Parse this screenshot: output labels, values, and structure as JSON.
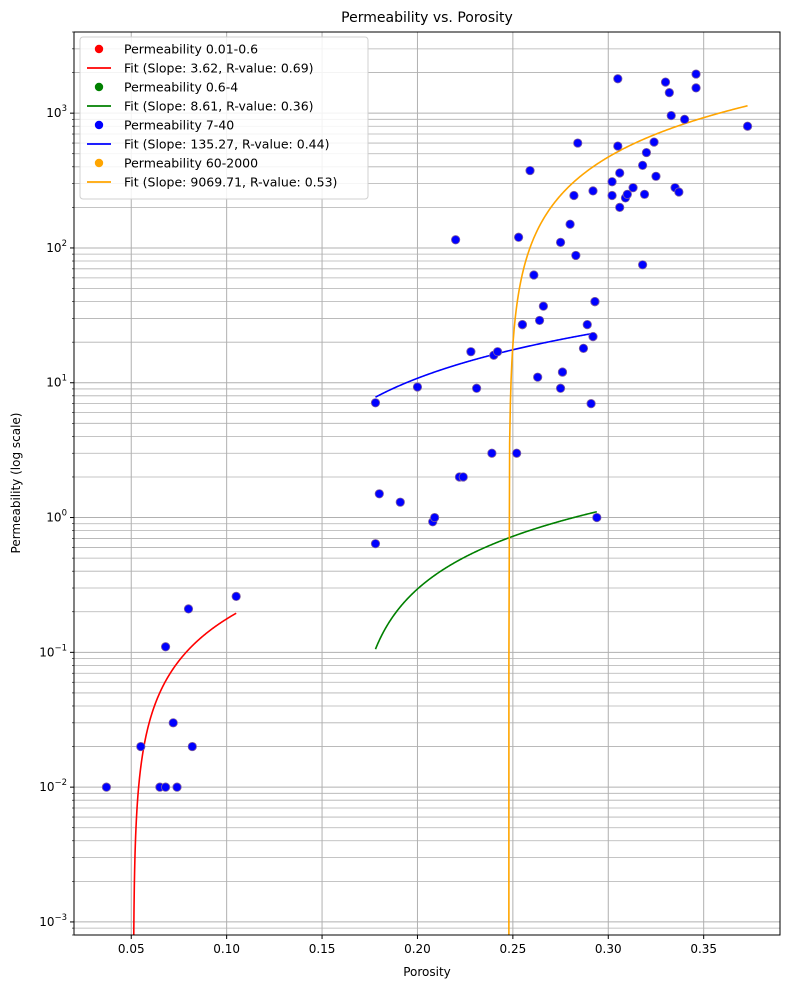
{
  "chart_data": {
    "type": "scatter",
    "title": "Permeability vs. Porosity",
    "xlabel": "Porosity",
    "ylabel": "Permeability (log scale)",
    "xlim": [
      0.02,
      0.39
    ],
    "ylim": [
      0.0008,
      4000
    ],
    "yscale": "log",
    "grid": true,
    "legend_position": "top-left",
    "x_ticks": [
      {
        "value": 0.05,
        "label": "0.05"
      },
      {
        "value": 0.1,
        "label": "0.10"
      },
      {
        "value": 0.15,
        "label": "0.15"
      },
      {
        "value": 0.2,
        "label": "0.20"
      },
      {
        "value": 0.25,
        "label": "0.25"
      },
      {
        "value": 0.3,
        "label": "0.30"
      },
      {
        "value": 0.35,
        "label": "0.35"
      }
    ],
    "y_ticks": [
      {
        "value": 0.001,
        "base": "10",
        "exp": "−3"
      },
      {
        "value": 0.01,
        "base": "10",
        "exp": "−2"
      },
      {
        "value": 0.1,
        "base": "10",
        "exp": "−1"
      },
      {
        "value": 1,
        "base": "10",
        "exp": "0"
      },
      {
        "value": 10,
        "base": "10",
        "exp": "1"
      },
      {
        "value": 100,
        "base": "10",
        "exp": "2"
      },
      {
        "value": 1000,
        "base": "10",
        "exp": "3"
      }
    ],
    "scatter_series": [
      {
        "name": "Permeability 0.01-0.6",
        "color": "#ff0000",
        "points": [
          [
            0.037,
            0.01
          ],
          [
            0.055,
            0.02
          ],
          [
            0.065,
            0.01
          ],
          [
            0.068,
            0.01
          ],
          [
            0.068,
            0.11
          ],
          [
            0.072,
            0.03
          ],
          [
            0.074,
            0.01
          ],
          [
            0.08,
            0.21
          ],
          [
            0.082,
            0.02
          ],
          [
            0.105,
            0.26
          ]
        ]
      },
      {
        "name": "Permeability 0.6-4",
        "color": "#008000",
        "points": [
          [
            0.178,
            0.64
          ],
          [
            0.18,
            1.5
          ],
          [
            0.191,
            1.3
          ],
          [
            0.208,
            0.93
          ],
          [
            0.209,
            1.0
          ],
          [
            0.222,
            2.0
          ],
          [
            0.224,
            2.0
          ],
          [
            0.239,
            3.0
          ],
          [
            0.252,
            3.0
          ],
          [
            0.294,
            1.0
          ]
        ]
      },
      {
        "name": "Permeability 7-40",
        "color": "#0000ff",
        "points": [
          [
            0.178,
            7.1
          ],
          [
            0.2,
            9.3
          ],
          [
            0.228,
            17
          ],
          [
            0.231,
            9.1
          ],
          [
            0.24,
            16
          ],
          [
            0.242,
            17
          ],
          [
            0.255,
            27
          ],
          [
            0.255,
            27
          ],
          [
            0.263,
            11
          ],
          [
            0.264,
            29
          ],
          [
            0.266,
            37
          ],
          [
            0.275,
            9.1
          ],
          [
            0.276,
            12
          ],
          [
            0.276,
            12
          ],
          [
            0.287,
            18
          ],
          [
            0.289,
            27
          ],
          [
            0.291,
            7.0
          ],
          [
            0.292,
            22
          ],
          [
            0.293,
            40
          ],
          [
            0.293,
            40
          ]
        ]
      },
      {
        "name": "Permeability 60-2000",
        "color": "#ffa500",
        "points": [
          [
            0.22,
            115
          ],
          [
            0.253,
            120
          ],
          [
            0.259,
            375
          ],
          [
            0.261,
            63
          ],
          [
            0.275,
            110
          ],
          [
            0.28,
            150
          ],
          [
            0.282,
            245
          ],
          [
            0.283,
            88
          ],
          [
            0.284,
            600
          ],
          [
            0.292,
            265
          ],
          [
            0.302,
            245
          ],
          [
            0.302,
            310
          ],
          [
            0.305,
            1800
          ],
          [
            0.305,
            570
          ],
          [
            0.306,
            200
          ],
          [
            0.306,
            360
          ],
          [
            0.309,
            235
          ],
          [
            0.31,
            250
          ],
          [
            0.313,
            280
          ],
          [
            0.318,
            75
          ],
          [
            0.318,
            410
          ],
          [
            0.319,
            250
          ],
          [
            0.32,
            510
          ],
          [
            0.324,
            610
          ],
          [
            0.325,
            340
          ],
          [
            0.33,
            1700
          ],
          [
            0.332,
            1420
          ],
          [
            0.333,
            960
          ],
          [
            0.335,
            280
          ],
          [
            0.337,
            260
          ],
          [
            0.34,
            900
          ],
          [
            0.346,
            1950
          ],
          [
            0.346,
            1540
          ],
          [
            0.373,
            800
          ]
        ]
      }
    ],
    "fit_lines": [
      {
        "name": "Fit (Slope: 3.62, R-value: 0.69)",
        "color": "#ff0000",
        "slope": 3.62,
        "intercept": -0.185,
        "x_range": [
          0.037,
          0.105
        ]
      },
      {
        "name": "Fit (Slope: 8.61, R-value: 0.36)",
        "color": "#008000",
        "slope": 8.61,
        "intercept": -1.427,
        "x_range": [
          0.178,
          0.294
        ]
      },
      {
        "name": "Fit (Slope: 135.27, R-value: 0.44)",
        "color": "#0000ff",
        "slope": 135.27,
        "intercept": -16.26,
        "x_range": [
          0.178,
          0.293
        ]
      },
      {
        "name": "Fit (Slope: 9069.71, R-value: 0.53)",
        "color": "#ffa500",
        "slope": 9069.71,
        "intercept": -2248.5,
        "x_range": [
          0.22,
          0.373
        ]
      }
    ],
    "legend_entries": [
      {
        "kind": "marker",
        "label": "Permeability 0.01-0.6",
        "color": "#ff0000"
      },
      {
        "kind": "line",
        "label": "Fit (Slope: 3.62, R-value: 0.69)",
        "color": "#ff0000"
      },
      {
        "kind": "marker",
        "label": "Permeability 0.6-4",
        "color": "#008000"
      },
      {
        "kind": "line",
        "label": "Fit (Slope: 8.61, R-value: 0.36)",
        "color": "#008000"
      },
      {
        "kind": "marker",
        "label": "Permeability 7-40",
        "color": "#0000ff"
      },
      {
        "kind": "line",
        "label": "Fit (Slope: 135.27, R-value: 0.44)",
        "color": "#0000ff"
      },
      {
        "kind": "marker",
        "label": "Permeability 60-2000",
        "color": "#ffa500"
      },
      {
        "kind": "line",
        "label": "Fit (Slope: 9069.71, R-value: 0.53)",
        "color": "#ffa500"
      }
    ],
    "point_fill_color": "#0000ff",
    "point_edge_color": "#8060a0",
    "grid_color": "#b0b0b0"
  }
}
